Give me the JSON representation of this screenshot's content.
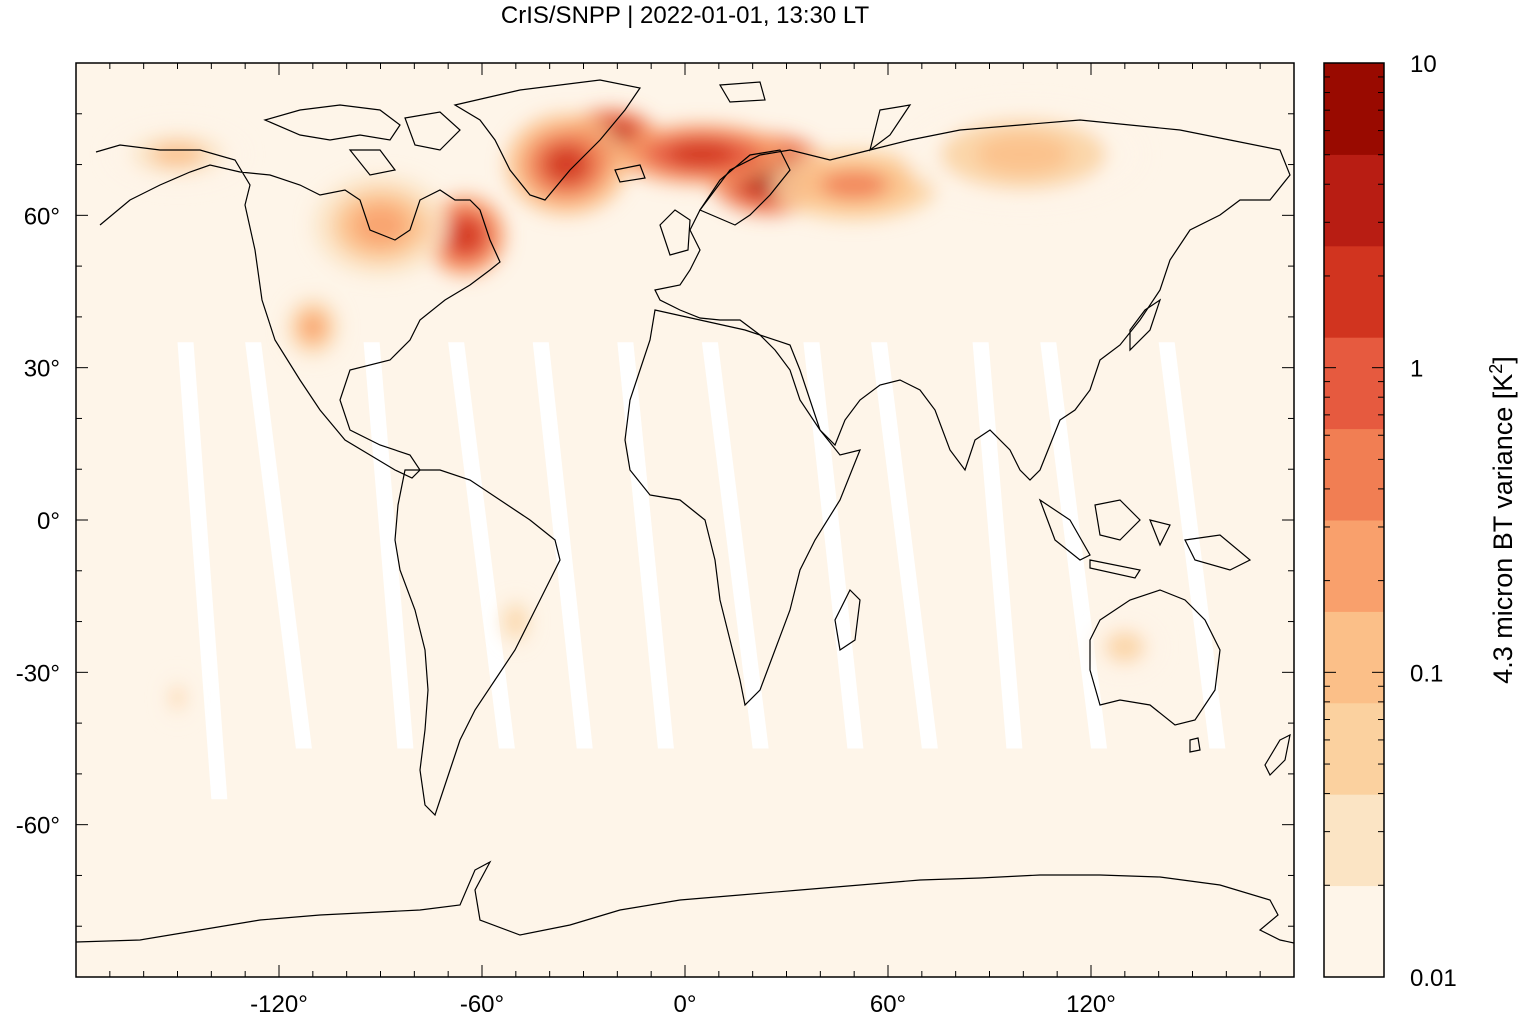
{
  "title": "CrIS/SNPP | 2022-01-01, 13:30 LT",
  "map": {
    "projection": "equirectangular",
    "lon_range": [
      -180,
      180
    ],
    "lat_range": [
      -90,
      90
    ],
    "x_ticks": [
      {
        "value": -120,
        "label": "-120°"
      },
      {
        "value": -60,
        "label": "-60°"
      },
      {
        "value": 0,
        "label": "0°"
      },
      {
        "value": 60,
        "label": "60°"
      },
      {
        "value": 120,
        "label": "120°"
      }
    ],
    "y_ticks": [
      {
        "value": 60,
        "label": "60°"
      },
      {
        "value": 30,
        "label": "30°"
      },
      {
        "value": 0,
        "label": "0°"
      },
      {
        "value": -30,
        "label": "-30°"
      },
      {
        "value": -60,
        "label": "-60°"
      }
    ],
    "background_color": "#fef5e9",
    "gap_color": "#ffffff",
    "coastline_color": "#000000"
  },
  "colorbar": {
    "label_main": "4.3 micron BT variance [K",
    "label_sup": "2",
    "label_end": "]",
    "scale": "log",
    "range": [
      0.01,
      10
    ],
    "tick_labels": [
      {
        "value": 10,
        "label": "10"
      },
      {
        "value": 1,
        "label": "1"
      },
      {
        "value": 0.1,
        "label": "0.1"
      },
      {
        "value": 0.01,
        "label": "0.01"
      }
    ],
    "colors": [
      "#fef5e9",
      "#fbe4c4",
      "#fbd19f",
      "#fbbf88",
      "#f9a06c",
      "#f17e53",
      "#e65a3f",
      "#d1341f",
      "#b81d13",
      "#990a00"
    ]
  },
  "chart_data": {
    "type": "heatmap",
    "title": "CrIS/SNPP | 2022-01-01, 13:30 LT",
    "xlabel": "",
    "ylabel": "",
    "xlim": [
      -180,
      180
    ],
    "ylim": [
      -90,
      90
    ],
    "colorbar_label": "4.3 micron BT variance [K^2]",
    "colorbar_range": [
      0.01,
      10
    ],
    "colorbar_scale": "log",
    "background_value": 0.01,
    "anomalies": [
      {
        "lon": 25,
        "lat": 68,
        "rx": 18,
        "ry": 8,
        "value": 6.0
      },
      {
        "lon": -22,
        "lat": 75,
        "rx": 14,
        "ry": 6,
        "value": 4.0
      },
      {
        "lon": 5,
        "lat": 72,
        "rx": 25,
        "ry": 6,
        "value": 2.5
      },
      {
        "lon": -35,
        "lat": 70,
        "rx": 18,
        "ry": 10,
        "value": 1.5
      },
      {
        "lon": -65,
        "lat": 56,
        "rx": 12,
        "ry": 8,
        "value": 2.0
      },
      {
        "lon": -90,
        "lat": 58,
        "rx": 20,
        "ry": 10,
        "value": 0.3
      },
      {
        "lon": -110,
        "lat": 38,
        "rx": 8,
        "ry": 6,
        "value": 0.3
      },
      {
        "lon": 50,
        "lat": 66,
        "rx": 25,
        "ry": 7,
        "value": 0.4
      },
      {
        "lon": 100,
        "lat": 72,
        "rx": 35,
        "ry": 10,
        "value": 0.12
      },
      {
        "lon": -150,
        "lat": 72,
        "rx": 20,
        "ry": 6,
        "value": 0.1
      },
      {
        "lon": -50,
        "lat": -20,
        "rx": 6,
        "ry": 6,
        "value": 0.06
      },
      {
        "lon": 130,
        "lat": -25,
        "rx": 15,
        "ry": 8,
        "value": 0.05
      },
      {
        "lon": -150,
        "lat": -35,
        "rx": 5,
        "ry": 6,
        "value": 0.05
      }
    ],
    "data_gaps": [
      {
        "lon_top": -150,
        "lat_top": 35,
        "lon_bottom": -140,
        "lat_bottom": -55
      },
      {
        "lon_top": -130,
        "lat_top": 35,
        "lon_bottom": -115,
        "lat_bottom": -45
      },
      {
        "lon_top": -95,
        "lat_top": 35,
        "lon_bottom": -85,
        "lat_bottom": -45
      },
      {
        "lon_top": -70,
        "lat_top": 35,
        "lon_bottom": -55,
        "lat_bottom": -45
      },
      {
        "lon_top": -45,
        "lat_top": 35,
        "lon_bottom": -32,
        "lat_bottom": -45
      },
      {
        "lon_top": -20,
        "lat_top": 35,
        "lon_bottom": -8,
        "lat_bottom": -45
      },
      {
        "lon_top": 5,
        "lat_top": 35,
        "lon_bottom": 20,
        "lat_bottom": -45
      },
      {
        "lon_top": 35,
        "lat_top": 35,
        "lon_bottom": 48,
        "lat_bottom": -45
      },
      {
        "lon_top": 55,
        "lat_top": 35,
        "lon_bottom": 70,
        "lat_bottom": -45
      },
      {
        "lon_top": 85,
        "lat_top": 35,
        "lon_bottom": 95,
        "lat_bottom": -45
      },
      {
        "lon_top": 105,
        "lat_top": 35,
        "lon_bottom": 120,
        "lat_bottom": -45
      },
      {
        "lon_top": 140,
        "lat_top": 35,
        "lon_bottom": 155,
        "lat_bottom": -45
      }
    ]
  }
}
